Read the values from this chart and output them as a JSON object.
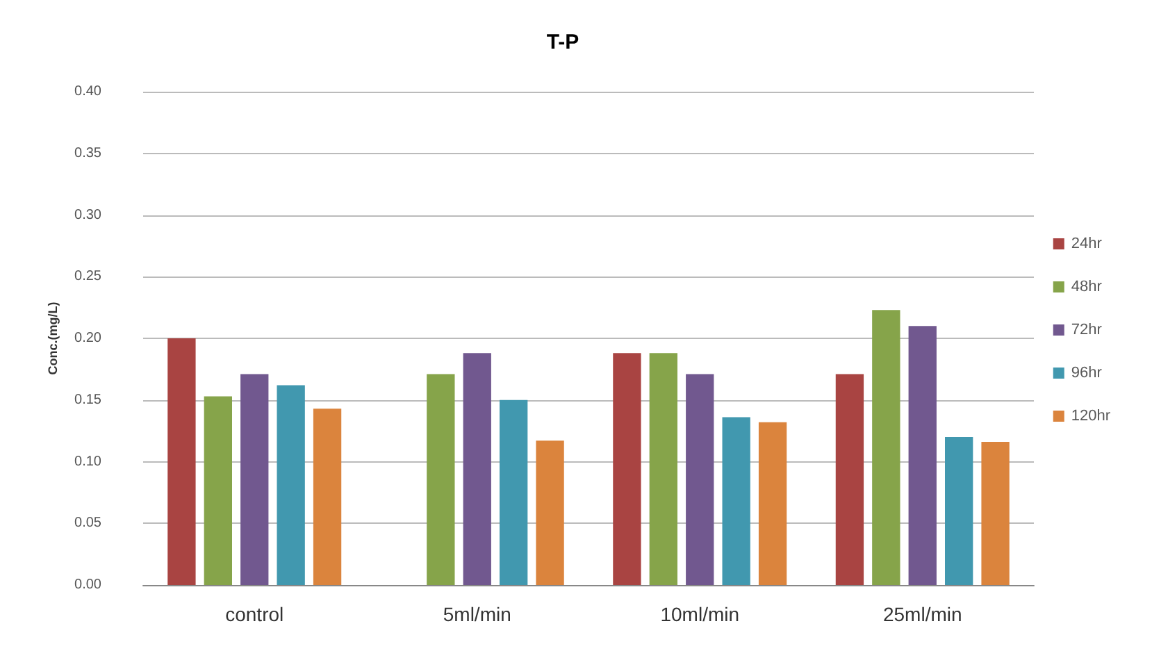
{
  "chart_data": {
    "type": "bar",
    "title": "T-P",
    "ylabel": "Conc.(mg/L)",
    "categories": [
      "control",
      "5ml/min",
      "10ml/min",
      "25ml/min"
    ],
    "series": [
      {
        "name": "24hr",
        "color": "#a94442",
        "values": [
          0.2,
          null,
          0.188,
          0.171
        ]
      },
      {
        "name": "48hr",
        "color": "#86a44a",
        "values": [
          0.153,
          0.171,
          0.188,
          0.223
        ]
      },
      {
        "name": "72hr",
        "color": "#71588f",
        "values": [
          0.171,
          0.188,
          0.171,
          0.21
        ]
      },
      {
        "name": "96hr",
        "color": "#4198af",
        "values": [
          0.162,
          0.15,
          0.136,
          0.12
        ]
      },
      {
        "name": "120hr",
        "color": "#db843d",
        "values": [
          0.143,
          0.117,
          0.132,
          0.116
        ]
      }
    ],
    "ylim": [
      0,
      0.4
    ],
    "yticks": [
      {
        "value": 0,
        "label": "0.00"
      },
      {
        "value": 0.05,
        "label": "0.05"
      },
      {
        "value": 0.1,
        "label": "0.10"
      },
      {
        "value": 0.15,
        "label": "0.15"
      },
      {
        "value": 0.2,
        "label": "0.20"
      },
      {
        "value": 0.25,
        "label": "0.25"
      },
      {
        "value": 0.3,
        "label": "0.30"
      },
      {
        "value": 0.35,
        "label": "0.35"
      },
      {
        "value": 0.4,
        "label": "0.40"
      }
    ],
    "grid": "y",
    "legend": "right"
  }
}
